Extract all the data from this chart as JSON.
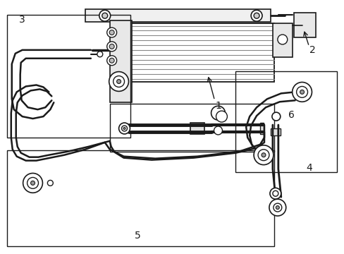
{
  "background_color": "#ffffff",
  "line_color": "#1a1a1a",
  "figsize": [
    4.89,
    3.6
  ],
  "dpi": 100,
  "label_fontsize": 10
}
